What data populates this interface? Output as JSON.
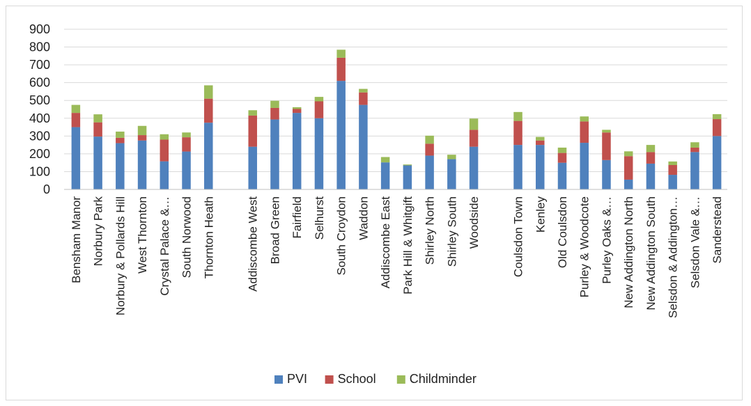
{
  "chart_data": {
    "type": "bar",
    "stacked": true,
    "ylim": [
      0,
      900
    ],
    "yticks": [
      0,
      100,
      200,
      300,
      400,
      500,
      600,
      700,
      800,
      900
    ],
    "grid": true,
    "legend_position": "bottom",
    "groups": [
      [
        "Bensham Manor",
        "Norbury Park",
        "Norbury & Pollards Hill",
        "West Thornton",
        "Crystal Palace &…",
        "South Norwood",
        "Thornton Heath"
      ],
      [
        "Addiscombe West",
        "Broad Green",
        "Fairfield",
        "Selhurst",
        "South Croydon",
        "Waddon",
        "Addiscombe East",
        "Park Hill & Whitgift",
        "Shirley North",
        "Shirley South",
        "Woodside"
      ],
      [
        "Coulsdon Town",
        "Kenley",
        "Old Coulsdon",
        "Purley & Woodcote",
        "Purley Oaks &…",
        "New Addington North",
        "New Addington South",
        "Selsdon & Addington…",
        "Selsdon Vale &…",
        "Sanderstead"
      ]
    ],
    "categories": [
      "Bensham Manor",
      "Norbury Park",
      "Norbury & Pollards Hill",
      "West Thornton",
      "Crystal Palace &…",
      "South Norwood",
      "Thornton Heath",
      "Addiscombe West",
      "Broad Green",
      "Fairfield",
      "Selhurst",
      "South Croydon",
      "Waddon",
      "Addiscombe East",
      "Park Hill & Whitgift",
      "Shirley North",
      "Shirley South",
      "Woodside",
      "Coulsdon Town",
      "Kenley",
      "Old Coulsdon",
      "Purley & Woodcote",
      "Purley Oaks &…",
      "New Addington North",
      "New Addington South",
      "Selsdon & Addington…",
      "Selsdon Vale &…",
      "Sanderstead"
    ],
    "series": [
      {
        "name": "PVI",
        "color": "#4f81bd",
        "values": [
          350,
          297,
          260,
          275,
          158,
          213,
          375,
          240,
          393,
          430,
          400,
          610,
          475,
          152,
          135,
          190,
          170,
          240,
          250,
          250,
          150,
          262,
          165,
          55,
          145,
          82,
          210,
          300
        ]
      },
      {
        "name": "School",
        "color": "#c0504d",
        "values": [
          80,
          80,
          30,
          30,
          122,
          80,
          135,
          175,
          65,
          22,
          95,
          130,
          70,
          0,
          0,
          67,
          0,
          95,
          135,
          25,
          55,
          120,
          155,
          132,
          65,
          55,
          25,
          95
        ]
      },
      {
        "name": "Childminder",
        "color": "#9bbb59",
        "values": [
          45,
          45,
          35,
          52,
          30,
          27,
          75,
          30,
          40,
          10,
          25,
          45,
          20,
          30,
          5,
          45,
          25,
          63,
          50,
          20,
          30,
          28,
          15,
          27,
          40,
          20,
          30,
          28
        ]
      }
    ]
  }
}
